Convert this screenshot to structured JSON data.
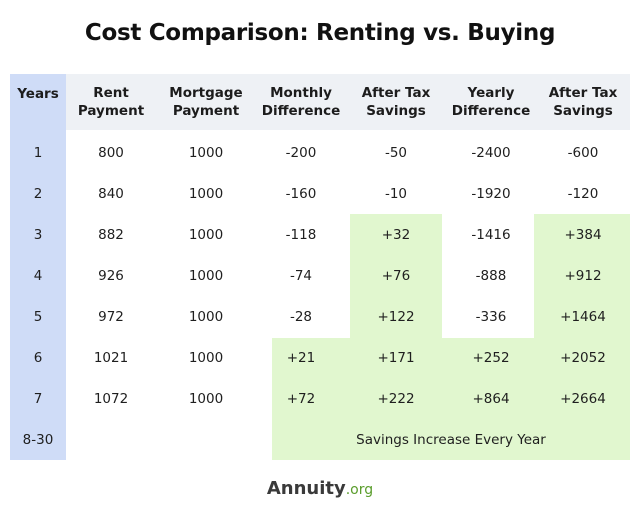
{
  "title": "Cost Comparison: Renting vs. Buying",
  "headers": {
    "years": "Years",
    "rent": "Rent Payment",
    "mortgage": "Mortgage Payment",
    "monthly_diff": "Monthly Difference",
    "after_tax_1": "After Tax Savings",
    "yearly_diff": "Yearly Difference",
    "after_tax_2": "After Tax Savings"
  },
  "rows": [
    {
      "year": "1",
      "rent": "800",
      "mortgage": "1000",
      "monthly_diff": "-200",
      "after_tax_1": "-50",
      "yearly_diff": "-2400",
      "after_tax_2": "-600"
    },
    {
      "year": "2",
      "rent": "840",
      "mortgage": "1000",
      "monthly_diff": "-160",
      "after_tax_1": "-10",
      "yearly_diff": "-1920",
      "after_tax_2": "-120"
    },
    {
      "year": "3",
      "rent": "882",
      "mortgage": "1000",
      "monthly_diff": "-118",
      "after_tax_1": "+32",
      "yearly_diff": "-1416",
      "after_tax_2": "+384"
    },
    {
      "year": "4",
      "rent": "926",
      "mortgage": "1000",
      "monthly_diff": "-74",
      "after_tax_1": "+76",
      "yearly_diff": "-888",
      "after_tax_2": "+912"
    },
    {
      "year": "5",
      "rent": "972",
      "mortgage": "1000",
      "monthly_diff": "-28",
      "after_tax_1": "+122",
      "yearly_diff": "-336",
      "after_tax_2": "+1464"
    },
    {
      "year": "6",
      "rent": "1021",
      "mortgage": "1000",
      "monthly_diff": "+21",
      "after_tax_1": "+171",
      "yearly_diff": "+252",
      "after_tax_2": "+2052"
    },
    {
      "year": "7",
      "rent": "1072",
      "mortgage": "1000",
      "monthly_diff": "+72",
      "after_tax_1": "+222",
      "yearly_diff": "+864",
      "after_tax_2": "+2664"
    }
  ],
  "final_row": {
    "year": "8-30",
    "note": "Savings Increase Every Year"
  },
  "logo": {
    "main": "Annuity",
    "sub": ".org"
  },
  "colors": {
    "years_column": "#cfdcf7",
    "header_background": "#eef1f5",
    "savings_highlight": "#e1f7cf",
    "logo_accent": "#5a9d2c"
  }
}
